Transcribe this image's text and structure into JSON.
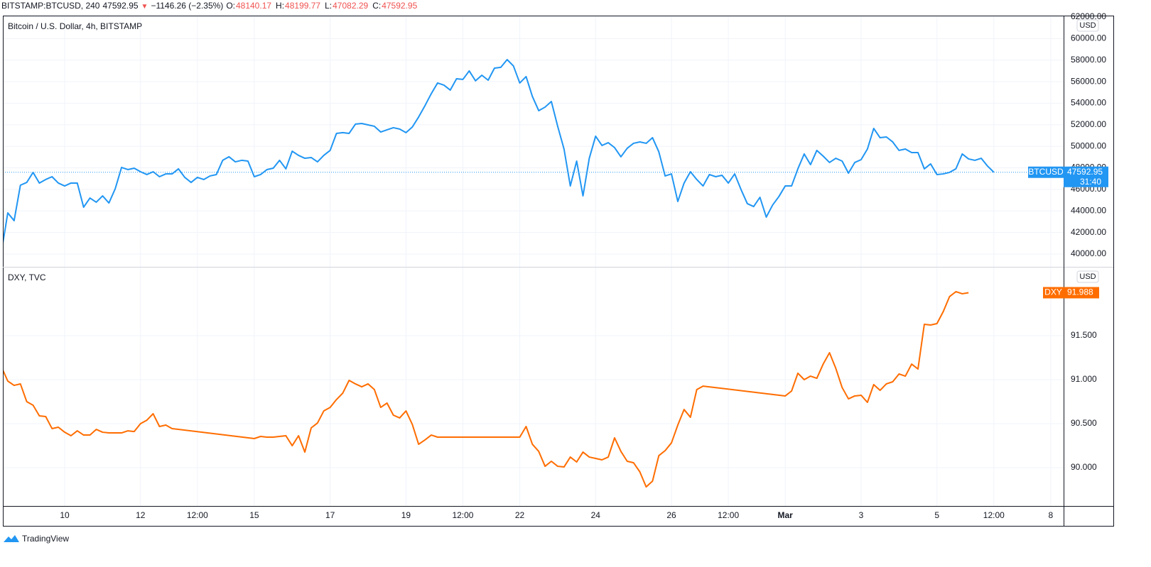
{
  "header": {
    "symbol": "BITSTAMP:BTCUSD, 240",
    "last": "47592.95",
    "change": "−1146.26 (−2.35%)",
    "open_label": "O:",
    "open": "48140.17",
    "high_label": "H:",
    "high": "48199.77",
    "low_label": "L:",
    "low": "47082.29",
    "close_label": "C:",
    "close": "47592.95"
  },
  "footer": {
    "brand": "TradingView"
  },
  "chart_data": [
    {
      "type": "line",
      "title": "Bitcoin / U.S. Dollar, 4h, BITSTAMP",
      "currency": "USD",
      "countdown": "31:40",
      "grid": true,
      "xlim": [
        8.37,
        36.34
      ],
      "ylim": [
        38814,
        62134
      ],
      "yticks": [
        {
          "value": 40000,
          "label": "40000.00"
        },
        {
          "value": 42000,
          "label": "42000.00"
        },
        {
          "value": 44000,
          "label": "44000.00"
        },
        {
          "value": 46000,
          "label": "46000.00"
        },
        {
          "value": 48000,
          "label": "48000.00"
        },
        {
          "value": 50000,
          "label": "50000.00"
        },
        {
          "value": 52000,
          "label": "52000.00"
        },
        {
          "value": 54000,
          "label": "54000.00"
        },
        {
          "value": 56000,
          "label": "56000.00"
        },
        {
          "value": 58000,
          "label": "58000.00"
        },
        {
          "value": 60000,
          "label": "60000.00"
        },
        {
          "value": 62000,
          "label": "62000.00"
        }
      ],
      "series": [
        {
          "name": "BTCUSD",
          "color": "#2196f3",
          "x": [
            8.333,
            8.5,
            8.667,
            8.833,
            9,
            9.167,
            9.333,
            9.5,
            9.667,
            9.833,
            10,
            10.167,
            10.333,
            10.5,
            10.667,
            10.833,
            11,
            11.167,
            11.333,
            11.5,
            11.667,
            11.833,
            12,
            12.167,
            12.333,
            12.5,
            12.667,
            12.833,
            13,
            13.167,
            13.333,
            13.5,
            13.667,
            13.833,
            14,
            14.167,
            14.333,
            14.5,
            14.667,
            14.833,
            15,
            15.167,
            15.333,
            15.5,
            15.667,
            15.833,
            16,
            16.167,
            16.333,
            16.5,
            16.667,
            16.833,
            17,
            17.167,
            17.333,
            17.5,
            17.667,
            17.833,
            18,
            18.167,
            18.333,
            18.5,
            18.667,
            18.833,
            19,
            19.167,
            19.333,
            19.5,
            19.667,
            19.833,
            20,
            20.167,
            20.333,
            20.5,
            20.667,
            20.833,
            21,
            21.167,
            21.333,
            21.5,
            21.667,
            21.833,
            22,
            22.167,
            22.333,
            22.5,
            22.667,
            22.833,
            23,
            23.167,
            23.333,
            23.5,
            23.667,
            23.833,
            24,
            24.167,
            24.333,
            24.5,
            24.667,
            24.833,
            25,
            25.167,
            25.333,
            25.5,
            25.667,
            25.833,
            26,
            26.167,
            26.333,
            26.5,
            26.667,
            26.833,
            27,
            27.167,
            27.333,
            27.5,
            27.667,
            27.833,
            28,
            28.167,
            28.333,
            28.5,
            28.667,
            28.833,
            29,
            29.167,
            29.333,
            29.5,
            29.667,
            29.833,
            30,
            30.167,
            30.333,
            30.5,
            30.667,
            30.833,
            31,
            31.167,
            31.333,
            31.5,
            31.667,
            31.833,
            32,
            32.167,
            32.333,
            32.5,
            32.667,
            32.833,
            33,
            33.167,
            33.333,
            33.5,
            33.667,
            33.833,
            34,
            34.167,
            34.333,
            34.5
          ],
          "values": [
            40200,
            43820,
            43100,
            46390,
            46650,
            47580,
            46590,
            46920,
            47180,
            46590,
            46320,
            46590,
            46590,
            44350,
            45200,
            44810,
            45400,
            44740,
            46060,
            48040,
            47840,
            47970,
            47640,
            47380,
            47640,
            47180,
            47440,
            47440,
            47910,
            47120,
            46650,
            47120,
            46920,
            47250,
            47380,
            48700,
            49030,
            48560,
            48700,
            48630,
            47180,
            47380,
            47840,
            47970,
            48700,
            47910,
            49550,
            49160,
            48890,
            48960,
            48560,
            49160,
            49620,
            51200,
            51270,
            51200,
            52060,
            52120,
            51990,
            51860,
            51330,
            51530,
            51730,
            51600,
            51270,
            51790,
            52720,
            53770,
            54890,
            55880,
            55680,
            55220,
            56270,
            56210,
            57000,
            56080,
            56600,
            56140,
            57260,
            57330,
            58050,
            57460,
            55880,
            56470,
            54630,
            53310,
            53640,
            54160,
            51860,
            49750,
            46320,
            48630,
            45400,
            48890,
            50940,
            50080,
            50340,
            49880,
            49030,
            49820,
            50280,
            50410,
            50280,
            50800,
            49490,
            47250,
            47440,
            44880,
            46590,
            47640,
            46920,
            46320,
            47380,
            47180,
            47310,
            46590,
            47440,
            46000,
            44680,
            44410,
            45270,
            43430,
            44550,
            45340,
            46320,
            46320,
            47910,
            49290,
            48300,
            49620,
            49090,
            48500,
            48890,
            48630,
            47510,
            48500,
            48760,
            49750,
            51660,
            50800,
            50870,
            50410,
            49620,
            49750,
            49420,
            49420,
            47910,
            48370,
            47380,
            47440,
            47580,
            47910,
            49290,
            48830,
            48700,
            48890,
            48170,
            47592.95
          ]
        }
      ]
    },
    {
      "type": "line",
      "title": "DXY, TVC",
      "currency": "USD",
      "grid": true,
      "xlim": [
        8.37,
        36.34
      ],
      "ylim": [
        89.565,
        92.282
      ],
      "yticks": [
        {
          "value": 90,
          "label": "90.000"
        },
        {
          "value": 90.5,
          "label": "90.500"
        },
        {
          "value": 91,
          "label": "91.000"
        },
        {
          "value": 91.5,
          "label": "91.500"
        }
      ],
      "xticks": [
        10,
        12,
        {
          "value": 13.5,
          "label": "12:00"
        },
        15,
        17,
        19,
        {
          "value": 20.5,
          "label": "12:00"
        },
        22,
        24,
        26,
        {
          "value": 27.5,
          "label": "12:00"
        },
        {
          "value": 29,
          "label": "Mar"
        },
        {
          "value": 31,
          "label": "3"
        },
        {
          "value": 33,
          "label": "5"
        },
        {
          "value": 34.5,
          "label": "12:00"
        },
        {
          "value": 36,
          "label": "8"
        }
      ],
      "series": [
        {
          "name": "DXY",
          "color": "#ff6d00",
          "x": [
            8.333,
            8.5,
            8.667,
            8.833,
            9,
            9.167,
            9.333,
            9.5,
            9.667,
            9.833,
            10,
            10.167,
            10.333,
            10.5,
            10.667,
            10.833,
            11,
            11.167,
            11.333,
            11.5,
            11.667,
            11.833,
            12,
            12.167,
            12.333,
            12.5,
            12.667,
            12.833,
            15,
            15.167,
            15.333,
            15.5,
            15.667,
            15.833,
            16,
            16.167,
            16.333,
            16.5,
            16.667,
            16.833,
            17,
            17.167,
            17.333,
            17.5,
            17.667,
            17.833,
            18,
            18.167,
            18.333,
            18.5,
            18.667,
            18.833,
            19,
            19.167,
            19.333,
            19.5,
            19.667,
            19.833,
            22,
            22.167,
            22.333,
            22.5,
            22.667,
            22.833,
            23,
            23.167,
            23.333,
            23.5,
            23.667,
            23.833,
            24,
            24.167,
            24.333,
            24.5,
            24.667,
            24.833,
            25,
            25.167,
            25.333,
            25.5,
            25.667,
            25.833,
            26,
            26.167,
            26.333,
            26.5,
            26.667,
            26.833,
            29,
            29.167,
            29.333,
            29.5,
            29.667,
            29.833,
            30,
            30.167,
            30.333,
            30.5,
            30.667,
            30.833,
            31,
            31.167,
            31.333,
            31.5,
            31.667,
            31.833,
            32,
            32.167,
            32.333,
            32.5,
            32.667,
            32.833,
            33,
            33.167,
            33.333,
            33.5,
            33.667,
            33.833
          ],
          "values": [
            91.145,
            90.984,
            90.935,
            90.952,
            90.75,
            90.71,
            90.589,
            90.581,
            90.444,
            90.46,
            90.403,
            90.363,
            90.419,
            90.371,
            90.371,
            90.435,
            90.403,
            90.395,
            90.395,
            90.395,
            90.419,
            90.411,
            90.5,
            90.54,
            90.613,
            90.468,
            90.484,
            90.444,
            90.331,
            90.355,
            90.347,
            90.347,
            90.355,
            90.363,
            90.25,
            90.363,
            90.177,
            90.452,
            90.508,
            90.645,
            90.685,
            90.774,
            90.847,
            90.992,
            90.952,
            90.919,
            90.952,
            90.887,
            90.685,
            90.734,
            90.597,
            90.565,
            90.645,
            90.492,
            90.266,
            90.315,
            90.371,
            90.347,
            90.347,
            90.468,
            90.266,
            90.185,
            90.016,
            90.073,
            90.016,
            90.008,
            90.121,
            90.065,
            90.177,
            90.121,
            90.105,
            90.089,
            90.121,
            90.339,
            90.185,
            90.073,
            90.056,
            89.952,
            89.782,
            89.847,
            90.137,
            90.194,
            90.282,
            90.484,
            90.661,
            90.573,
            90.887,
            90.927,
            90.815,
            90.871,
            91.073,
            91,
            91.04,
            91.016,
            91.177,
            91.306,
            91.129,
            90.911,
            90.782,
            90.815,
            90.823,
            90.742,
            90.944,
            90.879,
            90.952,
            90.976,
            91.065,
            91.04,
            91.177,
            91.121,
            91.629,
            91.621,
            91.637,
            91.774,
            91.944,
            92,
            91.976,
            91.988
          ]
        }
      ]
    }
  ]
}
